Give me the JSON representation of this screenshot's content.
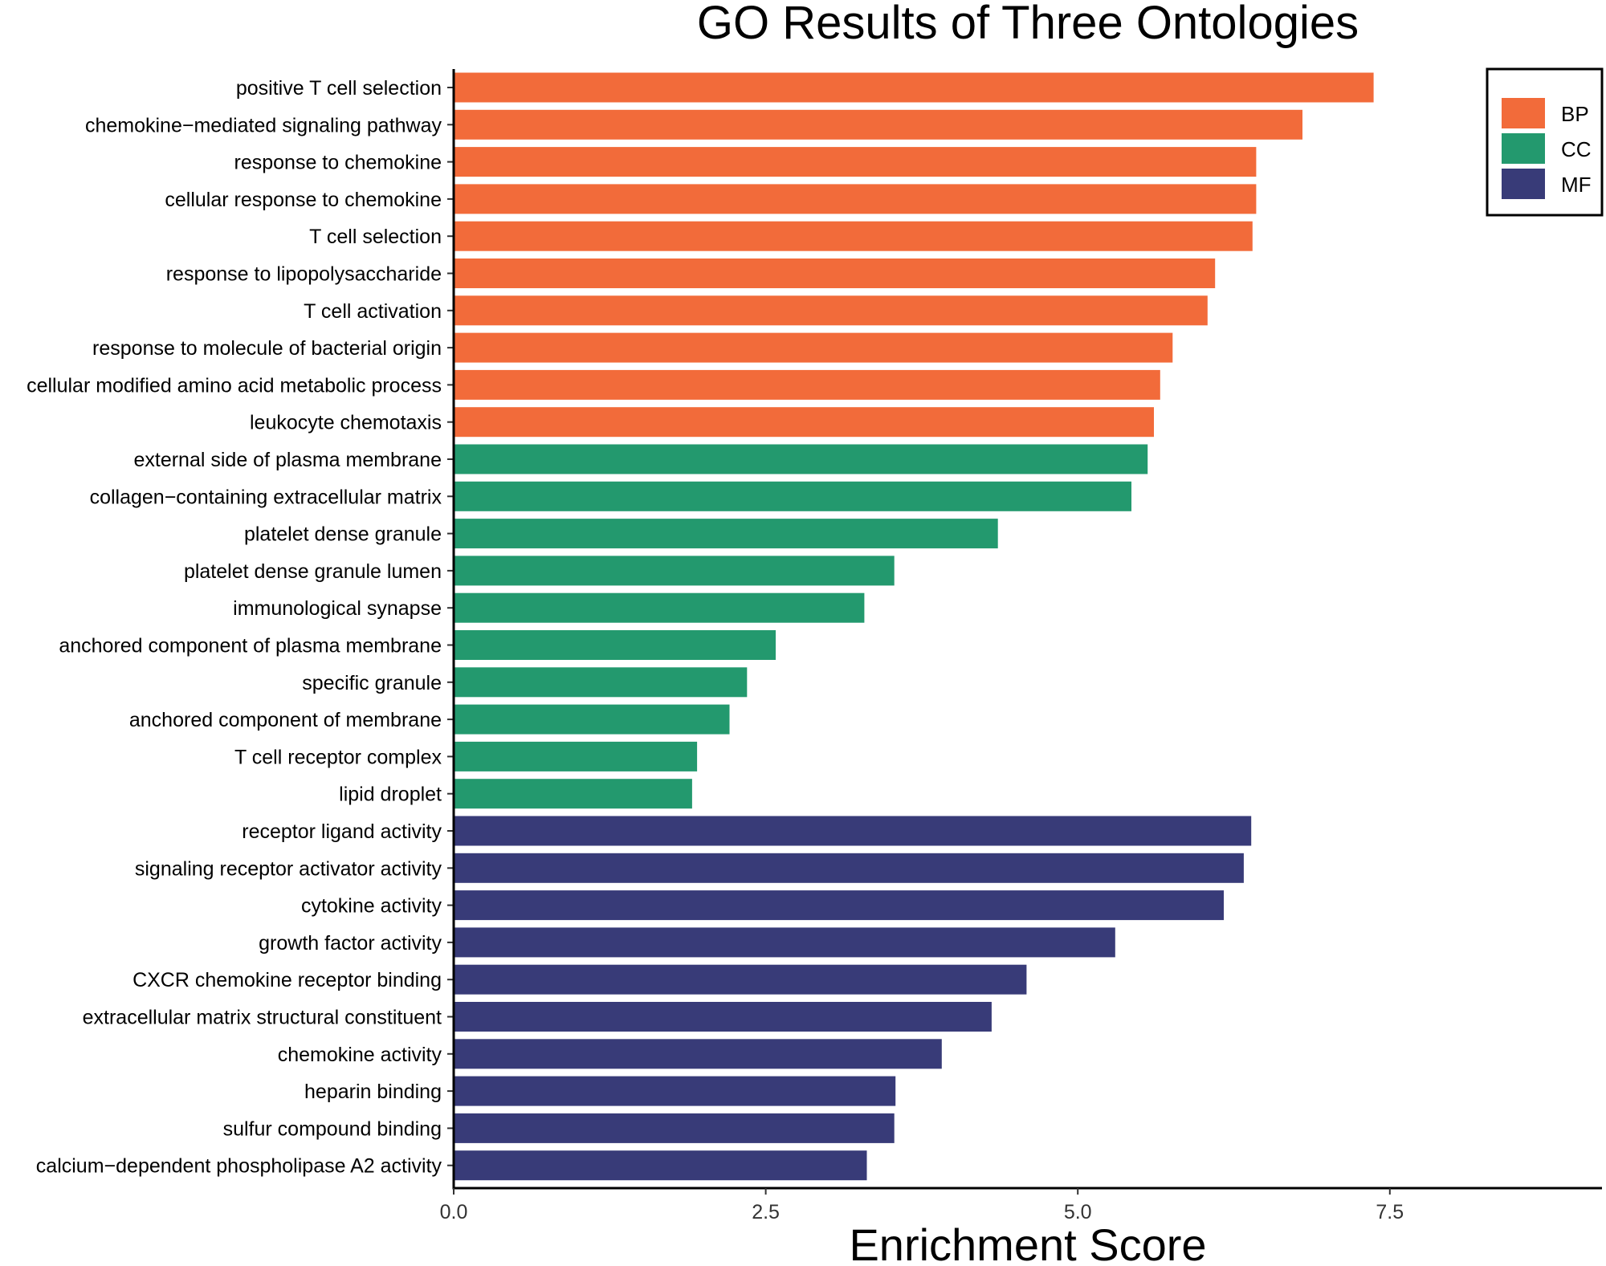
{
  "chart_data": {
    "type": "bar",
    "orientation": "horizontal",
    "title": "GO Results of Three Ontologies",
    "xlabel": "Enrichment Score",
    "ylabel": "",
    "xlim": [
      0,
      9.2
    ],
    "xticks": [
      {
        "value": 0,
        "label": "0.0"
      },
      {
        "value": 2.5,
        "label": "2.5"
      },
      {
        "value": 5,
        "label": "5.0"
      },
      {
        "value": 7.5,
        "label": "7.5"
      }
    ],
    "grid": false,
    "legend_position": "top-right",
    "legend": [
      {
        "name": "BP",
        "color": "#F26B3A"
      },
      {
        "name": "CC",
        "color": "#23996E"
      },
      {
        "name": "MF",
        "color": "#383B78"
      }
    ],
    "bars": [
      {
        "label": "positive T cell selection",
        "value": 7.37,
        "group": "BP"
      },
      {
        "label": "chemokine−mediated signaling pathway",
        "value": 6.8,
        "group": "BP"
      },
      {
        "label": "response to chemokine",
        "value": 6.43,
        "group": "BP"
      },
      {
        "label": "cellular response to chemokine",
        "value": 6.43,
        "group": "BP"
      },
      {
        "label": "T cell selection",
        "value": 6.4,
        "group": "BP"
      },
      {
        "label": "response to lipopolysaccharide",
        "value": 6.1,
        "group": "BP"
      },
      {
        "label": "T cell activation",
        "value": 6.04,
        "group": "BP"
      },
      {
        "label": "response to molecule of bacterial origin",
        "value": 5.76,
        "group": "BP"
      },
      {
        "label": "cellular modified amino acid metabolic process",
        "value": 5.66,
        "group": "BP"
      },
      {
        "label": "leukocyte chemotaxis",
        "value": 5.61,
        "group": "BP"
      },
      {
        "label": "external side of plasma membrane",
        "value": 5.56,
        "group": "CC"
      },
      {
        "label": "collagen−containing extracellular matrix",
        "value": 5.43,
        "group": "CC"
      },
      {
        "label": "platelet dense granule",
        "value": 4.36,
        "group": "CC"
      },
      {
        "label": "platelet dense granule lumen",
        "value": 3.53,
        "group": "CC"
      },
      {
        "label": "immunological synapse",
        "value": 3.29,
        "group": "CC"
      },
      {
        "label": "anchored component of plasma membrane",
        "value": 2.58,
        "group": "CC"
      },
      {
        "label": "specific granule",
        "value": 2.35,
        "group": "CC"
      },
      {
        "label": "anchored component of membrane",
        "value": 2.21,
        "group": "CC"
      },
      {
        "label": "T cell receptor complex",
        "value": 1.95,
        "group": "CC"
      },
      {
        "label": "lipid droplet",
        "value": 1.91,
        "group": "CC"
      },
      {
        "label": "receptor ligand activity",
        "value": 6.39,
        "group": "MF"
      },
      {
        "label": "signaling receptor activator activity",
        "value": 6.33,
        "group": "MF"
      },
      {
        "label": "cytokine activity",
        "value": 6.17,
        "group": "MF"
      },
      {
        "label": "growth factor activity",
        "value": 5.3,
        "group": "MF"
      },
      {
        "label": "CXCR chemokine receptor binding",
        "value": 4.59,
        "group": "MF"
      },
      {
        "label": "extracellular matrix structural constituent",
        "value": 4.31,
        "group": "MF"
      },
      {
        "label": "chemokine activity",
        "value": 3.91,
        "group": "MF"
      },
      {
        "label": "heparin binding",
        "value": 3.54,
        "group": "MF"
      },
      {
        "label": "sulfur compound binding",
        "value": 3.53,
        "group": "MF"
      },
      {
        "label": "calcium−dependent phospholipase A2 activity",
        "value": 3.31,
        "group": "MF"
      }
    ]
  }
}
